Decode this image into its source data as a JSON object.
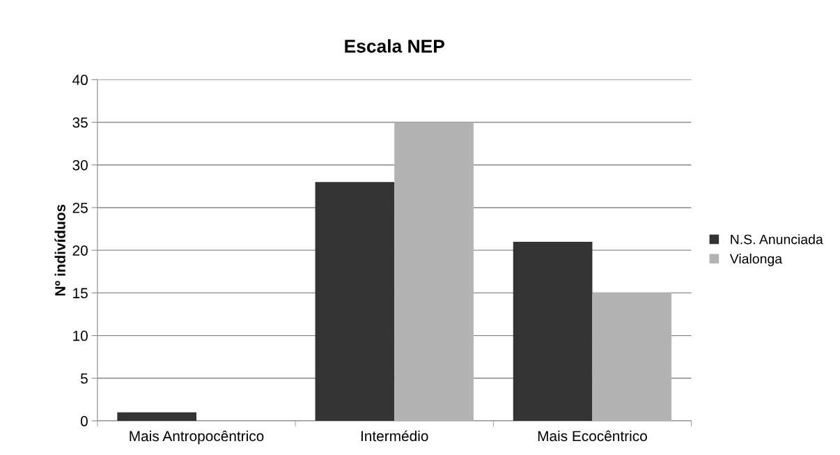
{
  "chart_data": {
    "type": "bar",
    "title": "Escala NEP",
    "ylabel": "Nº indivíduos",
    "categories": [
      "Mais Antropocêntrico",
      "Intermédio",
      "Mais Ecocêntrico"
    ],
    "series": [
      {
        "name": "N.S. Anunciada",
        "color": "#333333",
        "values": [
          1,
          28,
          21
        ]
      },
      {
        "name": "Vialonga",
        "color": "#b3b3b3",
        "values": [
          0,
          35,
          15
        ]
      }
    ],
    "ylim": [
      0,
      40
    ],
    "yticks": [
      0,
      5,
      10,
      15,
      20,
      25,
      30,
      35,
      40
    ],
    "grid": "y",
    "legend": "right"
  }
}
